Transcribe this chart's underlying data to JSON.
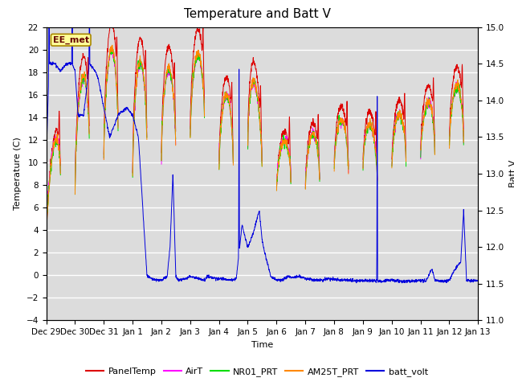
{
  "title": "Temperature and Batt V",
  "xlabel": "Time",
  "ylabel_left": "Temperature (C)",
  "ylabel_right": "Batt V",
  "ylim_left": [
    -4,
    22
  ],
  "ylim_right": [
    11.0,
    15.0
  ],
  "yticks_left": [
    -4,
    -2,
    0,
    2,
    4,
    6,
    8,
    10,
    12,
    14,
    16,
    18,
    20,
    22
  ],
  "yticks_right": [
    11.0,
    11.5,
    12.0,
    12.5,
    13.0,
    13.5,
    14.0,
    14.5,
    15.0
  ],
  "bg_color": "#dcdcdc",
  "grid_color": "#ffffff",
  "colors": {
    "PanelTemp": "#dd0000",
    "AirT": "#ff00ff",
    "NR01_PRT": "#00dd00",
    "AM25T_PRT": "#ff8800",
    "batt_volt": "#0000dd"
  },
  "legend_label": "EE_met",
  "legend_label_color": "#660000",
  "legend_label_bg": "#ffff99",
  "legend_label_border": "#aa8800",
  "xtick_labels": [
    "Dec 29",
    "Dec 30",
    "Dec 31",
    "Jan 1",
    "Jan 2",
    "Jan 3",
    "Jan 4",
    "Jan 5",
    "Jan 6",
    "Jan 7",
    "Jan 8",
    "Jan 9",
    "Jan 10",
    "Jan 11",
    "Jan 12",
    "Jan 13"
  ],
  "title_fontsize": 11,
  "axis_fontsize": 8,
  "tick_fontsize": 7.5,
  "legend_fontsize": 8
}
